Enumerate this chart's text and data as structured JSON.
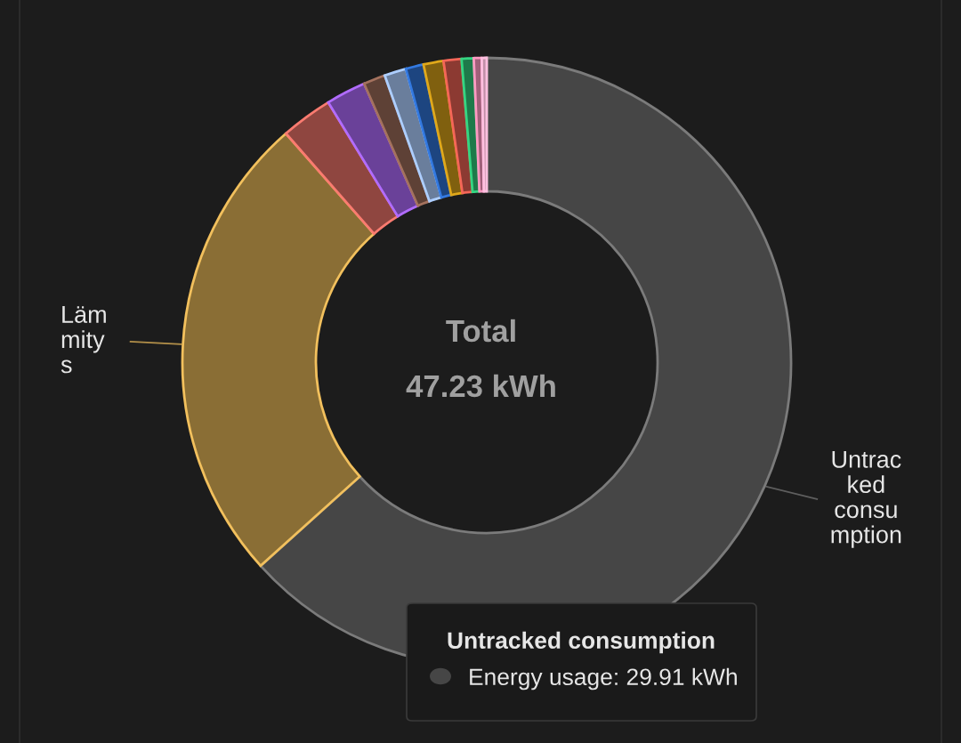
{
  "chart_data": {
    "type": "donut",
    "categories": [
      "Untracked consumption",
      "Lämmitys",
      null,
      null,
      null,
      null,
      null,
      null,
      null,
      null,
      null,
      null
    ],
    "values": [
      63.33,
      25.2,
      2.75,
      2.12,
      1.16,
      1.16,
      0.95,
      1.06,
      0.95,
      0.64,
      0.42,
      0.26
    ],
    "colors": [
      "#464646",
      "#8a6e35",
      "#8f4640",
      "#6a4199",
      "#5e4136",
      "#6a7e9c",
      "#1d4580",
      "#80600f",
      "#8c3a32",
      "#1e7a4a",
      "#a0607a",
      "#c090a8"
    ],
    "annotations": [
      "Total",
      "47.23 kWh",
      "Untracked consumption",
      "Energy usage: 29.91 kWh"
    ]
  }
}
